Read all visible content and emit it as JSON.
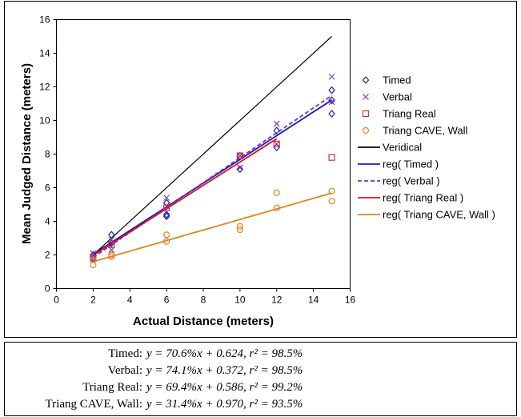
{
  "chart_data": {
    "type": "scatter",
    "title": "",
    "xlabel": "Actual Distance (meters)",
    "ylabel": "Mean Judged Distance (meters)",
    "xlim": [
      0,
      16
    ],
    "ylim": [
      0,
      16
    ],
    "xticks": [
      0,
      2,
      4,
      6,
      8,
      10,
      12,
      14,
      16
    ],
    "yticks": [
      0,
      2,
      4,
      6,
      8,
      10,
      12,
      14,
      16
    ],
    "grid": false,
    "legend_position": "right",
    "series": [
      {
        "name": "Timed",
        "marker": "diamond",
        "color": "#1f1fb4",
        "points": [
          [
            2,
            2.0
          ],
          [
            2,
            1.8
          ],
          [
            3,
            3.2
          ],
          [
            3,
            2.7
          ],
          [
            6,
            5.1
          ],
          [
            6,
            4.4
          ],
          [
            6,
            4.3
          ],
          [
            10,
            7.9
          ],
          [
            10,
            7.1
          ],
          [
            12,
            9.4
          ],
          [
            12,
            8.4
          ],
          [
            15,
            11.8
          ],
          [
            15,
            11.2
          ],
          [
            15,
            10.4
          ]
        ]
      },
      {
        "name": "Verbal",
        "marker": "x",
        "color": "#7a2fbf",
        "points": [
          [
            2,
            2.1
          ],
          [
            2,
            1.8
          ],
          [
            3,
            2.9
          ],
          [
            3,
            2.3
          ],
          [
            6,
            5.4
          ],
          [
            6,
            4.9
          ],
          [
            10,
            7.9
          ],
          [
            10,
            7.2
          ],
          [
            12,
            9.8
          ],
          [
            12,
            8.6
          ],
          [
            15,
            12.6
          ],
          [
            15,
            11.1
          ]
        ]
      },
      {
        "name": "Triang Real",
        "marker": "square",
        "color": "#e03030",
        "points": [
          [
            2,
            1.8
          ],
          [
            3,
            2.6
          ],
          [
            6,
            4.8
          ],
          [
            10,
            7.9
          ],
          [
            12,
            8.6
          ],
          [
            15,
            7.8
          ]
        ]
      },
      {
        "name": "Triang CAVE, Wall",
        "marker": "circle",
        "color": "#e8821e",
        "points": [
          [
            2,
            1.4
          ],
          [
            2,
            1.7
          ],
          [
            3,
            1.9
          ],
          [
            3,
            2.0
          ],
          [
            6,
            2.8
          ],
          [
            6,
            3.2
          ],
          [
            10,
            3.7
          ],
          [
            10,
            3.5
          ],
          [
            12,
            5.7
          ],
          [
            12,
            4.8
          ],
          [
            15,
            5.8
          ],
          [
            15,
            5.2
          ]
        ]
      }
    ],
    "lines": [
      {
        "name": "Veridical",
        "color": "#000000",
        "dash": "solid",
        "x": [
          2,
          15
        ],
        "y": [
          2,
          15
        ]
      },
      {
        "name": "reg( Timed )",
        "color": "#1414d2",
        "dash": "solid",
        "x": [
          2,
          15
        ],
        "y": [
          2.036,
          11.214
        ]
      },
      {
        "name": "reg( Verbal )",
        "color": "#7a2fbf",
        "dash": "dashed",
        "x": [
          2,
          15
        ],
        "y": [
          1.854,
          11.487
        ]
      },
      {
        "name": "reg( Triang Real )",
        "color": "#e01414",
        "dash": "solid",
        "x": [
          2,
          12
        ],
        "y": [
          1.974,
          8.914
        ]
      },
      {
        "name": "reg( Triang CAVE, Wall )",
        "color": "#e8821e",
        "dash": "solid",
        "x": [
          2,
          15
        ],
        "y": [
          1.598,
          5.68
        ]
      }
    ]
  },
  "equations": [
    {
      "label": "Timed:",
      "formula": "y = 70.6%x + 0.624, r² = 98.5%"
    },
    {
      "label": "Verbal:",
      "formula": "y = 74.1%x + 0.372, r² = 98.5%"
    },
    {
      "label": "Triang Real:",
      "formula": "y = 69.4%x + 0.586, r² = 99.2%"
    },
    {
      "label": "Triang CAVE, Wall:",
      "formula": "y = 31.4%x + 0.970, r² = 93.5%"
    }
  ]
}
